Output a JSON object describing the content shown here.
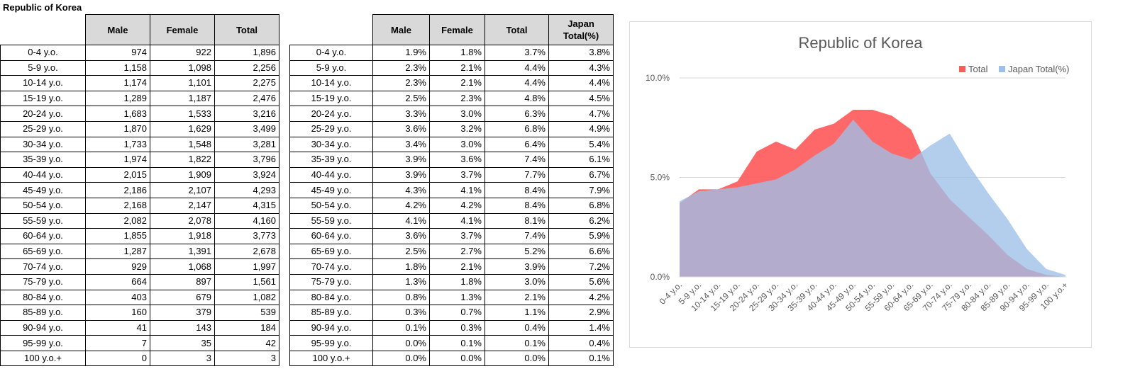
{
  "sheet": {
    "title": "Republic of Korea"
  },
  "counts_table": {
    "headers": [
      "Male",
      "Female",
      "Total"
    ],
    "rows": [
      {
        "age": "0-4 y.o.",
        "male": "974",
        "female": "922",
        "total": "1,896"
      },
      {
        "age": "5-9 y.o.",
        "male": "1,158",
        "female": "1,098",
        "total": "2,256"
      },
      {
        "age": "10-14 y.o.",
        "male": "1,174",
        "female": "1,101",
        "total": "2,275"
      },
      {
        "age": "15-19 y.o.",
        "male": "1,289",
        "female": "1,187",
        "total": "2,476"
      },
      {
        "age": "20-24 y.o.",
        "male": "1,683",
        "female": "1,533",
        "total": "3,216"
      },
      {
        "age": "25-29 y.o.",
        "male": "1,870",
        "female": "1,629",
        "total": "3,499"
      },
      {
        "age": "30-34 y.o.",
        "male": "1,733",
        "female": "1,548",
        "total": "3,281"
      },
      {
        "age": "35-39 y.o.",
        "male": "1,974",
        "female": "1,822",
        "total": "3,796"
      },
      {
        "age": "40-44 y.o.",
        "male": "2,015",
        "female": "1,909",
        "total": "3,924"
      },
      {
        "age": "45-49 y.o.",
        "male": "2,186",
        "female": "2,107",
        "total": "4,293"
      },
      {
        "age": "50-54 y.o.",
        "male": "2,168",
        "female": "2,147",
        "total": "4,315"
      },
      {
        "age": "55-59 y.o.",
        "male": "2,082",
        "female": "2,078",
        "total": "4,160"
      },
      {
        "age": "60-64 y.o.",
        "male": "1,855",
        "female": "1,918",
        "total": "3,773"
      },
      {
        "age": "65-69 y.o.",
        "male": "1,287",
        "female": "1,391",
        "total": "2,678"
      },
      {
        "age": "70-74 y.o.",
        "male": "929",
        "female": "1,068",
        "total": "1,997"
      },
      {
        "age": "75-79 y.o.",
        "male": "664",
        "female": "897",
        "total": "1,561"
      },
      {
        "age": "80-84 y.o.",
        "male": "403",
        "female": "679",
        "total": "1,082"
      },
      {
        "age": "85-89 y.o.",
        "male": "160",
        "female": "379",
        "total": "539"
      },
      {
        "age": "90-94 y.o.",
        "male": "41",
        "female": "143",
        "total": "184"
      },
      {
        "age": "95-99 y.o.",
        "male": "7",
        "female": "35",
        "total": "42"
      },
      {
        "age": "100 y.o.+",
        "male": "0",
        "female": "3",
        "total": "3"
      }
    ]
  },
  "percent_table": {
    "headers": [
      "Male",
      "Female",
      "Total",
      "Japan Total(%)"
    ],
    "rows": [
      {
        "age": "0-4 y.o.",
        "male": "1.9%",
        "female": "1.8%",
        "total": "3.7%",
        "japan": "3.8%"
      },
      {
        "age": "5-9 y.o.",
        "male": "2.3%",
        "female": "2.1%",
        "total": "4.4%",
        "japan": "4.3%"
      },
      {
        "age": "10-14 y.o.",
        "male": "2.3%",
        "female": "2.1%",
        "total": "4.4%",
        "japan": "4.4%"
      },
      {
        "age": "15-19 y.o.",
        "male": "2.5%",
        "female": "2.3%",
        "total": "4.8%",
        "japan": "4.5%"
      },
      {
        "age": "20-24 y.o.",
        "male": "3.3%",
        "female": "3.0%",
        "total": "6.3%",
        "japan": "4.7%"
      },
      {
        "age": "25-29 y.o.",
        "male": "3.6%",
        "female": "3.2%",
        "total": "6.8%",
        "japan": "4.9%"
      },
      {
        "age": "30-34 y.o.",
        "male": "3.4%",
        "female": "3.0%",
        "total": "6.4%",
        "japan": "5.4%"
      },
      {
        "age": "35-39 y.o.",
        "male": "3.9%",
        "female": "3.6%",
        "total": "7.4%",
        "japan": "6.1%"
      },
      {
        "age": "40-44 y.o.",
        "male": "3.9%",
        "female": "3.7%",
        "total": "7.7%",
        "japan": "6.7%"
      },
      {
        "age": "45-49 y.o.",
        "male": "4.3%",
        "female": "4.1%",
        "total": "8.4%",
        "japan": "7.9%"
      },
      {
        "age": "50-54 y.o.",
        "male": "4.2%",
        "female": "4.2%",
        "total": "8.4%",
        "japan": "6.8%"
      },
      {
        "age": "55-59 y.o.",
        "male": "4.1%",
        "female": "4.1%",
        "total": "8.1%",
        "japan": "6.2%"
      },
      {
        "age": "60-64 y.o.",
        "male": "3.6%",
        "female": "3.7%",
        "total": "7.4%",
        "japan": "5.9%"
      },
      {
        "age": "65-69 y.o.",
        "male": "2.5%",
        "female": "2.7%",
        "total": "5.2%",
        "japan": "6.6%"
      },
      {
        "age": "70-74 y.o.",
        "male": "1.8%",
        "female": "2.1%",
        "total": "3.9%",
        "japan": "7.2%"
      },
      {
        "age": "75-79 y.o.",
        "male": "1.3%",
        "female": "1.8%",
        "total": "3.0%",
        "japan": "5.6%"
      },
      {
        "age": "80-84 y.o.",
        "male": "0.8%",
        "female": "1.3%",
        "total": "2.1%",
        "japan": "4.2%"
      },
      {
        "age": "85-89 y.o.",
        "male": "0.3%",
        "female": "0.7%",
        "total": "1.1%",
        "japan": "2.9%"
      },
      {
        "age": "90-94 y.o.",
        "male": "0.1%",
        "female": "0.3%",
        "total": "0.4%",
        "japan": "1.4%"
      },
      {
        "age": "95-99 y.o.",
        "male": "0.0%",
        "female": "0.1%",
        "total": "0.1%",
        "japan": "0.4%"
      },
      {
        "age": "100 y.o.+",
        "male": "0.0%",
        "female": "0.0%",
        "total": "0.0%",
        "japan": "0.1%"
      }
    ]
  },
  "chart_data": {
    "type": "area",
    "title": "Republic of Korea",
    "categories": [
      "0-4 y.o.",
      "5-9 y.o.",
      "10-14 y.o.",
      "15-19 y.o.",
      "20-24 y.o.",
      "25-29 y.o.",
      "30-34 y.o.",
      "35-39 y.o.",
      "40-44 y.o.",
      "45-49 y.o.",
      "50-54 y.o.",
      "55-59 y.o.",
      "60-64 y.o.",
      "65-69 y.o.",
      "70-74 y.o.",
      "75-79 y.o.",
      "80-84 y.o.",
      "85-89 y.o.",
      "90-94 y.o.",
      "95-99 y.o.",
      "100 y.o.+"
    ],
    "series": [
      {
        "name": "Total",
        "color": "#ff5b5b",
        "values": [
          3.7,
          4.4,
          4.4,
          4.8,
          6.3,
          6.8,
          6.4,
          7.4,
          7.7,
          8.4,
          8.4,
          8.1,
          7.4,
          5.2,
          3.9,
          3.0,
          2.1,
          1.1,
          0.4,
          0.1,
          0.0
        ]
      },
      {
        "name": "Japan Total(%)",
        "color": "#9dbfe8",
        "values": [
          3.8,
          4.3,
          4.4,
          4.5,
          4.7,
          4.9,
          5.4,
          6.1,
          6.7,
          7.9,
          6.8,
          6.2,
          5.9,
          6.6,
          7.2,
          5.6,
          4.2,
          2.9,
          1.4,
          0.4,
          0.1
        ]
      }
    ],
    "yticks": [
      "0.0%",
      "5.0%",
      "10.0%"
    ],
    "ylim": [
      0,
      10
    ],
    "grid": true,
    "legend": "top-right"
  }
}
